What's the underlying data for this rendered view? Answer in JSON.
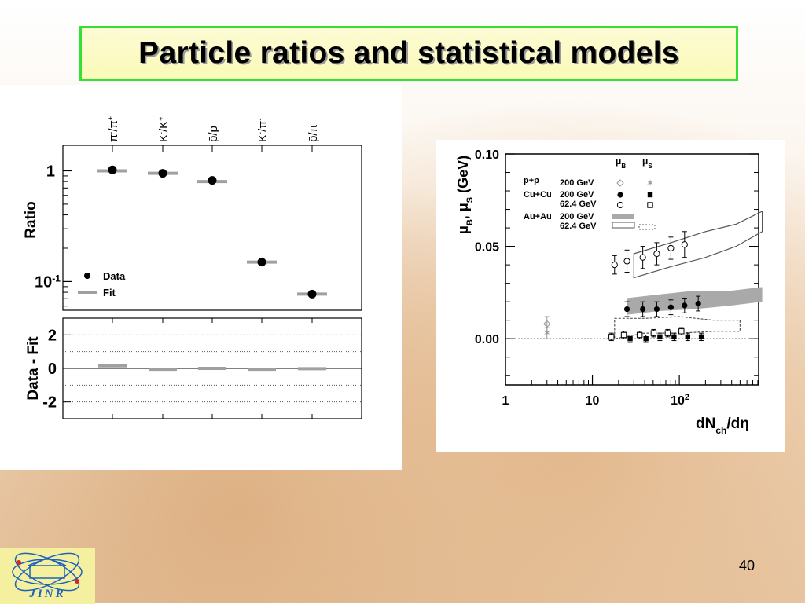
{
  "slide": {
    "title": "Particle ratios and  statistical models",
    "page_number": "40"
  },
  "logo": {
    "text": "JINR"
  },
  "colors": {
    "title_border": "#33e033",
    "title_bg": "#fafab8",
    "fit": "#a0a0a0",
    "band": "#a9a9a9"
  },
  "chart_data": [
    {
      "type": "scatter",
      "ylabel": "Ratio",
      "yscale": "log",
      "ylim": [
        0.055,
        1.7
      ],
      "y_ticks": [
        {
          "v": 1,
          "label": "1"
        },
        {
          "v": 0.1,
          "label": "10-1"
        }
      ],
      "categories": [
        "π⁻/π⁺",
        "K⁻/K⁺",
        "p̄/p",
        "K⁻/π⁻",
        "p̄/π⁻"
      ],
      "legend": [
        "Data",
        "Fit"
      ],
      "series": [
        {
          "name": "Data",
          "values": [
            1.02,
            0.95,
            0.82,
            0.15,
            0.077
          ]
        },
        {
          "name": "Fit",
          "values": [
            1.0,
            0.95,
            0.8,
            0.15,
            0.077
          ]
        }
      ],
      "residual": {
        "ylabel": "Data - Fit",
        "ylim": [
          -3,
          3
        ],
        "y_ticks": [
          2,
          0,
          -2
        ],
        "gridlines_dotted": [
          2,
          1,
          -1,
          -2
        ],
        "values": [
          0.15,
          -0.05,
          0.0,
          -0.05,
          -0.02
        ]
      }
    },
    {
      "type": "scatter",
      "xlabel": "dNch/dη",
      "ylabel": "μB, μS (GeV)",
      "xscale": "log",
      "xlim": [
        1,
        1000
      ],
      "ylim": [
        -0.025,
        0.1
      ],
      "x_ticks": [
        "1",
        "10",
        "10²"
      ],
      "y_ticks": [
        "0.10",
        "0.05",
        "0.00"
      ],
      "legend": {
        "columns": [
          "μB",
          "μS"
        ],
        "rows": [
          {
            "system": "p+p",
            "energy": "200 GeV"
          },
          {
            "system": "Cu+Cu",
            "energy": "200 GeV"
          },
          {
            "system": "",
            "energy": "62.4 GeV"
          },
          {
            "system": "Au+Au",
            "energy": "200 GeV"
          },
          {
            "system": "",
            "energy": "62.4 GeV"
          }
        ]
      },
      "series": [
        {
          "name": "p+p 200 GeV μB",
          "x": [
            3
          ],
          "y": [
            0.008
          ],
          "err": [
            0.004
          ]
        },
        {
          "name": "p+p 200 GeV μS",
          "x": [
            3
          ],
          "y": [
            0.003
          ],
          "err": [
            0.003
          ]
        },
        {
          "name": "Cu+Cu 200 GeV μB",
          "x": [
            25,
            38,
            55,
            80,
            115,
            165
          ],
          "y": [
            0.016,
            0.016,
            0.016,
            0.017,
            0.018,
            0.019
          ],
          "err": [
            0.004,
            0.004,
            0.004,
            0.004,
            0.004,
            0.004
          ]
        },
        {
          "name": "Cu+Cu 62.4 GeV μB",
          "x": [
            18,
            25,
            38,
            55,
            80,
            115
          ],
          "y": [
            0.04,
            0.042,
            0.044,
            0.046,
            0.049,
            0.051
          ],
          "err": [
            0.005,
            0.006,
            0.006,
            0.006,
            0.006,
            0.007
          ]
        },
        {
          "name": "Cu+Cu 200 GeV μS",
          "x": [
            25,
            38,
            55,
            80,
            115,
            165
          ],
          "y": [
            0.0,
            0.0,
            0.001,
            0.001,
            0.001,
            0.001
          ],
          "err": [
            0.002,
            0.002,
            0.002,
            0.002,
            0.002,
            0.002
          ]
        },
        {
          "name": "Cu+Cu 62.4 GeV μS",
          "x": [
            18,
            25,
            38,
            55,
            80,
            115
          ],
          "y": [
            0.001,
            0.002,
            0.002,
            0.003,
            0.003,
            0.004
          ],
          "err": [
            0.002,
            0.002,
            0.002,
            0.002,
            0.002,
            0.002
          ]
        }
      ],
      "bands": [
        {
          "name": "Au+Au 200 GeV μB",
          "x": [
            25,
            60,
            150,
            400,
            900
          ],
          "low": [
            0.013,
            0.015,
            0.016,
            0.018,
            0.02
          ],
          "high": [
            0.022,
            0.024,
            0.026,
            0.026,
            0.028
          ]
        },
        {
          "name": "Au+Au 62.4 GeV μB",
          "x": [
            30,
            80,
            200,
            450,
            900
          ],
          "low": [
            0.033,
            0.039,
            0.044,
            0.05,
            0.058
          ],
          "high": [
            0.046,
            0.052,
            0.058,
            0.062,
            0.069
          ]
        },
        {
          "name": "Au+Au 62.4 GeV μS",
          "x": [
            18,
            40,
            100,
            250,
            500
          ],
          "low": [
            0.0,
            0.003,
            0.003,
            0.004,
            0.004
          ],
          "high": [
            0.011,
            0.011,
            0.012,
            0.01,
            0.01
          ]
        }
      ]
    }
  ]
}
